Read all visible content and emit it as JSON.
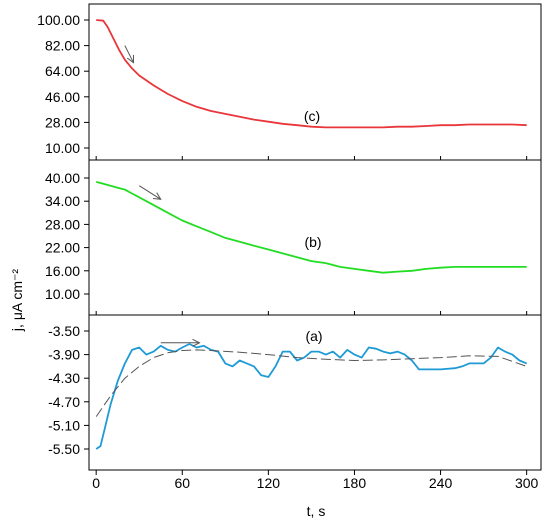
{
  "chart_data": {
    "type": "line",
    "shared_x_axis": {
      "label": "t, s",
      "ticks": [
        "0",
        "60",
        "120",
        "180",
        "240",
        "300"
      ],
      "range": [
        -5,
        310
      ]
    },
    "y_axis_label": "j, μA cm⁻²",
    "panels": [
      {
        "label": "(c)",
        "ylim": [
          10,
          100
        ],
        "yticks": [
          "100.00",
          "82.00",
          "64.00",
          "46.00",
          "28.00",
          "10.00"
        ],
        "series": [
          {
            "color": "#e8363a",
            "style": "solid",
            "points": [
              [
                0,
                100
              ],
              [
                5,
                99.5
              ],
              [
                8,
                95
              ],
              [
                12,
                87
              ],
              [
                16,
                79
              ],
              [
                20,
                72
              ],
              [
                25,
                66
              ],
              [
                30,
                61
              ],
              [
                40,
                54
              ],
              [
                50,
                48
              ],
              [
                60,
                43
              ],
              [
                70,
                39
              ],
              [
                80,
                36
              ],
              [
                90,
                34
              ],
              [
                100,
                32
              ],
              [
                110,
                30
              ],
              [
                120,
                28.5
              ],
              [
                130,
                27
              ],
              [
                140,
                26
              ],
              [
                150,
                25
              ],
              [
                160,
                24.5
              ],
              [
                170,
                24.5
              ],
              [
                180,
                24.5
              ],
              [
                190,
                24.5
              ],
              [
                200,
                24.5
              ],
              [
                210,
                25
              ],
              [
                220,
                25
              ],
              [
                230,
                25.5
              ],
              [
                240,
                26
              ],
              [
                250,
                26
              ],
              [
                260,
                26.5
              ],
              [
                270,
                26.5
              ],
              [
                280,
                26.5
              ],
              [
                290,
                26.5
              ],
              [
                300,
                26
              ]
            ]
          }
        ],
        "arrow": {
          "from": [
            20,
            82
          ],
          "to": [
            26,
            70
          ],
          "color": "#555555"
        }
      },
      {
        "label": "(b)",
        "ylim": [
          10,
          41
        ],
        "yticks": [
          "40.00",
          "34.00",
          "28.00",
          "22.00",
          "16.00",
          "10.00"
        ],
        "series": [
          {
            "color": "#22dd22",
            "style": "solid",
            "points": [
              [
                0,
                39
              ],
              [
                5,
                38.5
              ],
              [
                10,
                38
              ],
              [
                15,
                37.5
              ],
              [
                20,
                37
              ],
              [
                25,
                36
              ],
              [
                30,
                35
              ],
              [
                40,
                33
              ],
              [
                50,
                31
              ],
              [
                60,
                29
              ],
              [
                70,
                27.5
              ],
              [
                80,
                26
              ],
              [
                90,
                24.5
              ],
              [
                100,
                23.5
              ],
              [
                110,
                22.5
              ],
              [
                120,
                21.5
              ],
              [
                130,
                20.5
              ],
              [
                140,
                19.5
              ],
              [
                150,
                18.5
              ],
              [
                160,
                18
              ],
              [
                170,
                17
              ],
              [
                180,
                16.5
              ],
              [
                190,
                16
              ],
              [
                200,
                15.5
              ],
              [
                210,
                15.8
              ],
              [
                220,
                16
              ],
              [
                230,
                16.5
              ],
              [
                240,
                16.8
              ],
              [
                250,
                17
              ],
              [
                260,
                17
              ],
              [
                270,
                17
              ],
              [
                280,
                17
              ],
              [
                290,
                17
              ],
              [
                300,
                17
              ]
            ]
          }
        ],
        "arrow": {
          "from": [
            30,
            38
          ],
          "to": [
            45,
            34.5
          ],
          "color": "#555555"
        }
      },
      {
        "label": "(a)",
        "ylim": [
          -5.6,
          -3.35
        ],
        "yticks": [
          "-3.50",
          "-3.90",
          "-4.30",
          "-4.70",
          "-5.10",
          "-5.50"
        ],
        "series": [
          {
            "color": "#1e9ad6",
            "style": "solid",
            "points": [
              [
                0,
                -5.5
              ],
              [
                3,
                -5.45
              ],
              [
                6,
                -5.15
              ],
              [
                10,
                -4.75
              ],
              [
                15,
                -4.35
              ],
              [
                20,
                -4.05
              ],
              [
                25,
                -3.82
              ],
              [
                30,
                -3.78
              ],
              [
                35,
                -3.9
              ],
              [
                40,
                -3.85
              ],
              [
                45,
                -3.75
              ],
              [
                50,
                -3.82
              ],
              [
                55,
                -3.85
              ],
              [
                60,
                -3.78
              ],
              [
                65,
                -3.72
              ],
              [
                70,
                -3.78
              ],
              [
                75,
                -3.75
              ],
              [
                80,
                -3.82
              ],
              [
                85,
                -3.85
              ],
              [
                90,
                -4.05
              ],
              [
                95,
                -4.1
              ],
              [
                100,
                -4.0
              ],
              [
                105,
                -4.05
              ],
              [
                110,
                -4.1
              ],
              [
                115,
                -4.25
              ],
              [
                120,
                -4.28
              ],
              [
                125,
                -4.1
              ],
              [
                130,
                -3.85
              ],
              [
                135,
                -3.85
              ],
              [
                140,
                -4.0
              ],
              [
                145,
                -3.95
              ],
              [
                150,
                -3.85
              ],
              [
                155,
                -3.85
              ],
              [
                160,
                -3.9
              ],
              [
                165,
                -3.85
              ],
              [
                170,
                -3.95
              ],
              [
                175,
                -3.82
              ],
              [
                180,
                -3.9
              ],
              [
                185,
                -3.95
              ],
              [
                190,
                -3.78
              ],
              [
                195,
                -3.8
              ],
              [
                200,
                -3.85
              ],
              [
                205,
                -3.88
              ],
              [
                210,
                -3.85
              ],
              [
                215,
                -3.9
              ],
              [
                220,
                -4.0
              ],
              [
                225,
                -4.15
              ],
              [
                230,
                -4.15
              ],
              [
                240,
                -4.15
              ],
              [
                250,
                -4.13
              ],
              [
                255,
                -4.1
              ],
              [
                260,
                -4.05
              ],
              [
                265,
                -4.05
              ],
              [
                270,
                -4.05
              ],
              [
                275,
                -3.95
              ],
              [
                280,
                -3.78
              ],
              [
                285,
                -3.85
              ],
              [
                290,
                -3.9
              ],
              [
                295,
                -4.0
              ],
              [
                300,
                -4.05
              ]
            ]
          },
          {
            "color": "#555555",
            "style": "dashed",
            "points": [
              [
                0,
                -4.95
              ],
              [
                10,
                -4.6
              ],
              [
                20,
                -4.3
              ],
              [
                30,
                -4.1
              ],
              [
                40,
                -3.95
              ],
              [
                50,
                -3.87
              ],
              [
                60,
                -3.83
              ],
              [
                70,
                -3.82
              ],
              [
                80,
                -3.83
              ],
              [
                100,
                -3.86
              ],
              [
                120,
                -3.9
              ],
              [
                140,
                -3.95
              ],
              [
                160,
                -3.98
              ],
              [
                180,
                -4.0
              ],
              [
                200,
                -3.99
              ],
              [
                220,
                -3.97
              ],
              [
                240,
                -3.95
              ],
              [
                260,
                -3.92
              ],
              [
                280,
                -3.93
              ],
              [
                300,
                -4.1
              ]
            ]
          }
        ],
        "arrow": {
          "from": [
            45,
            -3.7
          ],
          "to": [
            72,
            -3.7
          ],
          "color": "#555555"
        }
      }
    ]
  }
}
